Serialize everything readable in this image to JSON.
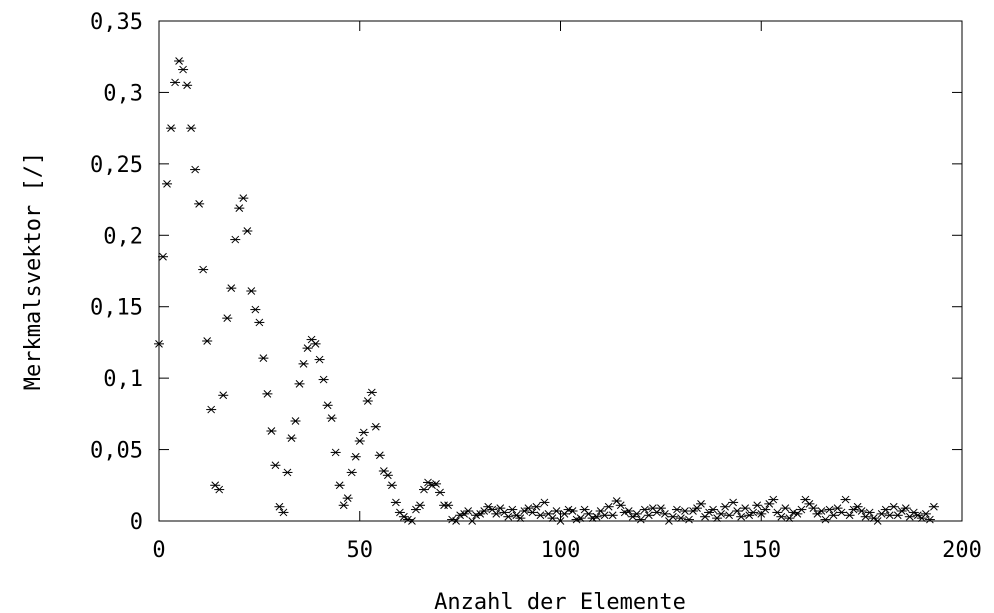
{
  "chart_data": {
    "type": "scatter",
    "xlabel": "Anzahl der Elemente",
    "ylabel": "Merkmalsvektor [/]",
    "xlim": [
      0,
      200
    ],
    "ylim": [
      0,
      0.35
    ],
    "xticks": [
      0,
      50,
      100,
      150,
      200
    ],
    "xtick_labels": [
      "0",
      "50",
      "100",
      "150",
      "200"
    ],
    "yticks": [
      0,
      0.05,
      0.1,
      0.15,
      0.2,
      0.25,
      0.3,
      0.35
    ],
    "ytick_labels": [
      "0",
      "0,05",
      "0,1",
      "0,15",
      "0,2",
      "0,25",
      "0,3",
      "0,35"
    ],
    "marker": "asterisk",
    "grid": false,
    "series": [
      {
        "points": [
          [
            0,
            0.124
          ],
          [
            1,
            0.185
          ],
          [
            2,
            0.236
          ],
          [
            3,
            0.275
          ],
          [
            4,
            0.307
          ],
          [
            5,
            0.322
          ],
          [
            6,
            0.316
          ],
          [
            7,
            0.305
          ],
          [
            8,
            0.275
          ],
          [
            9,
            0.246
          ],
          [
            10,
            0.222
          ],
          [
            11,
            0.176
          ],
          [
            12,
            0.126
          ],
          [
            13,
            0.078
          ],
          [
            14,
            0.025
          ],
          [
            15,
            0.022
          ],
          [
            16,
            0.088
          ],
          [
            17,
            0.142
          ],
          [
            18,
            0.163
          ],
          [
            19,
            0.197
          ],
          [
            20,
            0.219
          ],
          [
            21,
            0.226
          ],
          [
            22,
            0.203
          ],
          [
            23,
            0.161
          ],
          [
            24,
            0.148
          ],
          [
            25,
            0.139
          ],
          [
            26,
            0.114
          ],
          [
            27,
            0.089
          ],
          [
            28,
            0.063
          ],
          [
            29,
            0.039
          ],
          [
            30,
            0.01
          ],
          [
            31,
            0.006
          ],
          [
            32,
            0.034
          ],
          [
            33,
            0.058
          ],
          [
            34,
            0.07
          ],
          [
            35,
            0.096
          ],
          [
            36,
            0.11
          ],
          [
            37,
            0.121
          ],
          [
            38,
            0.127
          ],
          [
            39,
            0.124
          ],
          [
            40,
            0.113
          ],
          [
            41,
            0.099
          ],
          [
            42,
            0.081
          ],
          [
            43,
            0.072
          ],
          [
            44,
            0.048
          ],
          [
            45,
            0.025
          ],
          [
            46,
            0.011
          ],
          [
            47,
            0.016
          ],
          [
            48,
            0.034
          ],
          [
            49,
            0.045
          ],
          [
            50,
            0.056
          ],
          [
            51,
            0.062
          ],
          [
            52,
            0.084
          ],
          [
            53,
            0.09
          ],
          [
            54,
            0.066
          ],
          [
            55,
            0.046
          ],
          [
            56,
            0.035
          ],
          [
            57,
            0.032
          ],
          [
            58,
            0.025
          ],
          [
            59,
            0.013
          ],
          [
            60,
            0.006
          ],
          [
            61,
            0.003
          ],
          [
            62,
            0.001
          ],
          [
            63,
            0.0
          ],
          [
            64,
            0.008
          ],
          [
            65,
            0.011
          ],
          [
            66,
            0.022
          ],
          [
            67,
            0.027
          ],
          [
            68,
            0.025
          ],
          [
            69,
            0.026
          ],
          [
            70,
            0.02
          ],
          [
            71,
            0.011
          ],
          [
            72,
            0.011
          ],
          [
            73,
            0.001
          ],
          [
            74,
            0.0
          ],
          [
            75,
            0.004
          ],
          [
            76,
            0.005
          ],
          [
            77,
            0.007
          ],
          [
            78,
            0.0
          ],
          [
            79,
            0.004
          ],
          [
            80,
            0.005
          ],
          [
            81,
            0.007
          ],
          [
            82,
            0.01
          ],
          [
            83,
            0.008
          ],
          [
            84,
            0.005
          ],
          [
            85,
            0.009
          ],
          [
            86,
            0.006
          ],
          [
            87,
            0.003
          ],
          [
            88,
            0.008
          ],
          [
            89,
            0.004
          ],
          [
            90,
            0.002
          ],
          [
            91,
            0.007
          ],
          [
            92,
            0.009
          ],
          [
            93,
            0.006
          ],
          [
            94,
            0.01
          ],
          [
            95,
            0.004
          ],
          [
            96,
            0.013
          ],
          [
            97,
            0.005
          ],
          [
            98,
            0.002
          ],
          [
            99,
            0.007
          ],
          [
            100,
            0.0
          ],
          [
            101,
            0.005
          ],
          [
            102,
            0.008
          ],
          [
            103,
            0.007
          ],
          [
            104,
            0.001
          ],
          [
            105,
            0.002
          ],
          [
            106,
            0.008
          ],
          [
            107,
            0.005
          ],
          [
            108,
            0.002
          ],
          [
            109,
            0.003
          ],
          [
            110,
            0.007
          ],
          [
            111,
            0.004
          ],
          [
            112,
            0.01
          ],
          [
            113,
            0.004
          ],
          [
            114,
            0.014
          ],
          [
            115,
            0.011
          ],
          [
            116,
            0.006
          ],
          [
            117,
            0.007
          ],
          [
            118,
            0.003
          ],
          [
            119,
            0.005
          ],
          [
            120,
            0.001
          ],
          [
            121,
            0.008
          ],
          [
            122,
            0.004
          ],
          [
            123,
            0.009
          ],
          [
            124,
            0.006
          ],
          [
            125,
            0.009
          ],
          [
            126,
            0.005
          ],
          [
            127,
            0.0
          ],
          [
            128,
            0.003
          ],
          [
            129,
            0.008
          ],
          [
            130,
            0.002
          ],
          [
            131,
            0.007
          ],
          [
            132,
            0.001
          ],
          [
            133,
            0.007
          ],
          [
            134,
            0.009
          ],
          [
            135,
            0.012
          ],
          [
            136,
            0.003
          ],
          [
            137,
            0.006
          ],
          [
            138,
            0.008
          ],
          [
            139,
            0.002
          ],
          [
            140,
            0.005
          ],
          [
            141,
            0.01
          ],
          [
            142,
            0.004
          ],
          [
            143,
            0.013
          ],
          [
            144,
            0.007
          ],
          [
            145,
            0.003
          ],
          [
            146,
            0.009
          ],
          [
            147,
            0.004
          ],
          [
            148,
            0.006
          ],
          [
            149,
            0.011
          ],
          [
            150,
            0.005
          ],
          [
            151,
            0.008
          ],
          [
            152,
            0.012
          ],
          [
            153,
            0.015
          ],
          [
            154,
            0.006
          ],
          [
            155,
            0.003
          ],
          [
            156,
            0.009
          ],
          [
            157,
            0.002
          ],
          [
            158,
            0.006
          ],
          [
            159,
            0.005
          ],
          [
            160,
            0.008
          ],
          [
            161,
            0.015
          ],
          [
            162,
            0.012
          ],
          [
            163,
            0.009
          ],
          [
            164,
            0.005
          ],
          [
            165,
            0.007
          ],
          [
            166,
            0.001
          ],
          [
            167,
            0.008
          ],
          [
            168,
            0.004
          ],
          [
            169,
            0.009
          ],
          [
            170,
            0.006
          ],
          [
            171,
            0.015
          ],
          [
            172,
            0.004
          ],
          [
            173,
            0.008
          ],
          [
            174,
            0.01
          ],
          [
            175,
            0.007
          ],
          [
            176,
            0.003
          ],
          [
            177,
            0.006
          ],
          [
            178,
            0.002
          ],
          [
            179,
            0.0
          ],
          [
            180,
            0.005
          ],
          [
            181,
            0.008
          ],
          [
            182,
            0.004
          ],
          [
            183,
            0.01
          ],
          [
            184,
            0.004
          ],
          [
            185,
            0.007
          ],
          [
            186,
            0.009
          ],
          [
            187,
            0.003
          ],
          [
            188,
            0.006
          ],
          [
            189,
            0.004
          ],
          [
            190,
            0.002
          ],
          [
            191,
            0.005
          ],
          [
            192,
            0.001
          ],
          [
            193,
            0.01
          ]
        ]
      }
    ]
  }
}
